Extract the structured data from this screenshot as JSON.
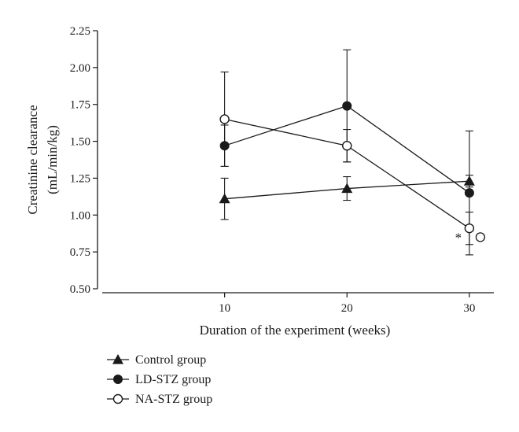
{
  "chart_data": {
    "type": "line",
    "xlabel": "Duration of the experiment (weeks)",
    "ylabel_line1": "Creatinine clearance",
    "ylabel_line2": "(mL/min/kg)",
    "x": [
      10,
      20,
      30
    ],
    "x_tick_labels": [
      "10",
      "20",
      "30"
    ],
    "xlim": [
      0,
      32
    ],
    "ylim": [
      0.5,
      2.25
    ],
    "y_ticks": [
      0.5,
      0.75,
      1.0,
      1.25,
      1.5,
      1.75,
      2.0,
      2.25
    ],
    "y_tick_labels": [
      "0.50",
      "0.75",
      "1.00",
      "1.25",
      "1.50",
      "1.75",
      "2.00",
      "2.25"
    ],
    "grid": false,
    "legend_position": "bottom-left",
    "series": [
      {
        "name": "Control group",
        "marker": "filled-triangle",
        "values": [
          1.11,
          1.18,
          1.23
        ],
        "error": [
          0.14,
          0.08,
          0.04
        ]
      },
      {
        "name": "LD-STZ group",
        "marker": "filled-circle",
        "values": [
          1.47,
          1.74,
          1.15
        ],
        "error": [
          0.14,
          0.38,
          0.42
        ]
      },
      {
        "name": "NA-STZ group",
        "marker": "open-circle",
        "values": [
          1.65,
          1.47,
          0.91
        ],
        "error": [
          0.32,
          0.11,
          0.11
        ]
      }
    ],
    "annotations": [
      {
        "text": "*",
        "x": 30,
        "y": 0.87,
        "note": "left of NA-STZ point"
      },
      {
        "text": "○",
        "x": 30,
        "y": 0.85,
        "note": "right of NA-STZ point"
      }
    ]
  }
}
